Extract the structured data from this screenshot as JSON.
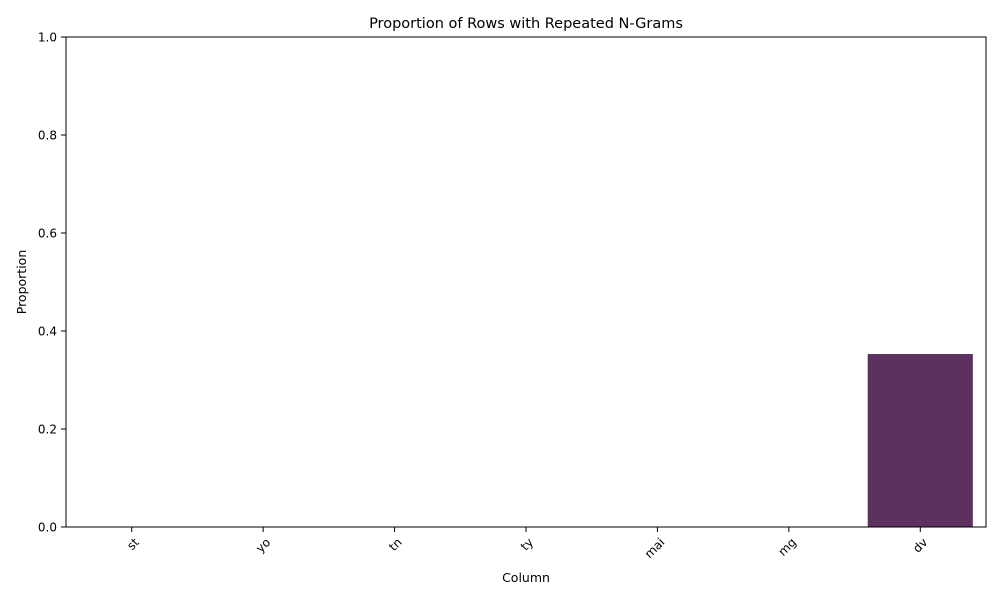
{
  "chart_data": {
    "type": "bar",
    "title": "Proportion of Rows with Repeated N-Grams",
    "xlabel": "Column",
    "ylabel": "Proportion",
    "categories": [
      "st",
      "yo",
      "tn",
      "ty",
      "mai",
      "mg",
      "dv"
    ],
    "values": [
      0,
      0,
      0,
      0,
      0,
      0,
      0.353
    ],
    "ylim": [
      0,
      1
    ],
    "yticks": [
      "0.0",
      "0.2",
      "0.4",
      "0.6",
      "0.8",
      "1.0"
    ],
    "x_tick_rotation_deg": 45,
    "grid": false,
    "legend": "none",
    "bar_color": "#5c3160"
  }
}
